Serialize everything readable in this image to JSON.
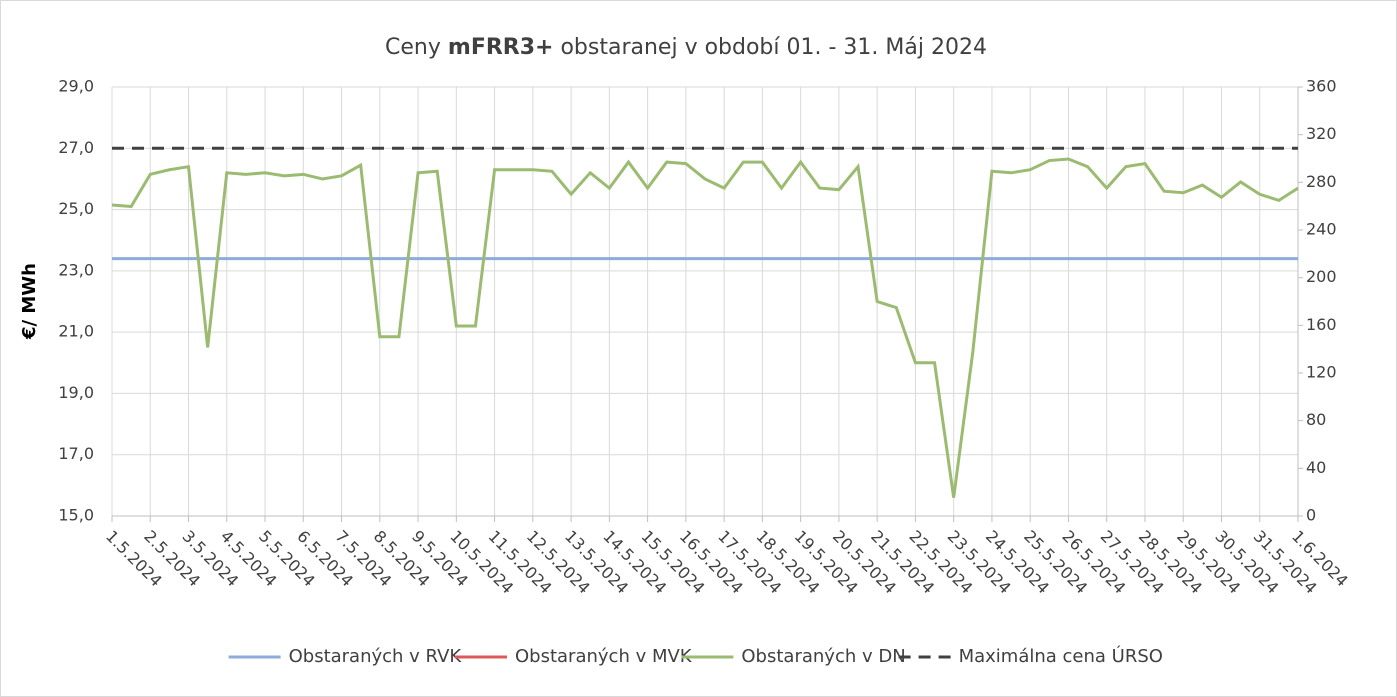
{
  "chart_data": {
    "type": "line",
    "title": [
      "Ceny ",
      "mFRR3+",
      " obstaranej v období 01. - 31. Máj 2024"
    ],
    "y_label": "€/ MWh",
    "x": [
      0,
      0.5,
      1,
      1.5,
      2,
      2.5,
      3,
      3.5,
      4,
      4.5,
      5,
      5.5,
      6,
      6.5,
      7,
      7.5,
      8,
      8.5,
      9,
      9.5,
      10,
      10.5,
      11,
      11.5,
      12,
      12.5,
      13,
      13.5,
      14,
      14.5,
      15,
      15.5,
      16,
      16.5,
      17,
      17.5,
      18,
      18.5,
      19,
      19.5,
      20,
      20.5,
      21,
      21.5,
      22,
      22.5,
      23,
      23.5,
      24,
      24.5,
      25,
      25.5,
      26,
      26.5,
      27,
      27.5,
      28,
      28.5,
      29,
      29.5,
      30,
      30.5,
      31
    ],
    "xlim": [
      0,
      31
    ],
    "xticks": [
      {
        "value": 0,
        "label": "1.5.2024"
      },
      {
        "value": 1,
        "label": "2.5.2024"
      },
      {
        "value": 2,
        "label": "3.5.2024"
      },
      {
        "value": 3,
        "label": "4.5.2024"
      },
      {
        "value": 4,
        "label": "5.5.2024"
      },
      {
        "value": 5,
        "label": "6.5.2024"
      },
      {
        "value": 6,
        "label": "7.5.2024"
      },
      {
        "value": 7,
        "label": "8.5.2024"
      },
      {
        "value": 8,
        "label": "9.5.2024"
      },
      {
        "value": 9,
        "label": "10.5.2024"
      },
      {
        "value": 10,
        "label": "11.5.2024"
      },
      {
        "value": 11,
        "label": "12.5.2024"
      },
      {
        "value": 12,
        "label": "13.5.2024"
      },
      {
        "value": 13,
        "label": "14.5.2024"
      },
      {
        "value": 14,
        "label": "15.5.2024"
      },
      {
        "value": 15,
        "label": "16.5.2024"
      },
      {
        "value": 16,
        "label": "17.5.2024"
      },
      {
        "value": 17,
        "label": "18.5.2024"
      },
      {
        "value": 18,
        "label": "19.5.2024"
      },
      {
        "value": 19,
        "label": "20.5.2024"
      },
      {
        "value": 20,
        "label": "21.5.2024"
      },
      {
        "value": 21,
        "label": "22.5.2024"
      },
      {
        "value": 22,
        "label": "23.5.2024"
      },
      {
        "value": 23,
        "label": "24.5.2024"
      },
      {
        "value": 24,
        "label": "25.5.2024"
      },
      {
        "value": 25,
        "label": "26.5.2024"
      },
      {
        "value": 26,
        "label": "27.5.2024"
      },
      {
        "value": 27,
        "label": "28.5.2024"
      },
      {
        "value": 28,
        "label": "29.5.2024"
      },
      {
        "value": 29,
        "label": "30.5.2024"
      },
      {
        "value": 30,
        "label": "31.5.2024"
      },
      {
        "value": 31,
        "label": "1.6.2024"
      }
    ],
    "ylim": [
      15,
      29
    ],
    "yticks": [
      {
        "value": 15,
        "label": "15,0"
      },
      {
        "value": 17,
        "label": "17,0"
      },
      {
        "value": 19,
        "label": "19,0"
      },
      {
        "value": 21,
        "label": "21,0"
      },
      {
        "value": 23,
        "label": "23,0"
      },
      {
        "value": 25,
        "label": "25,0"
      },
      {
        "value": 27,
        "label": "27,0"
      },
      {
        "value": 29,
        "label": "29,0"
      }
    ],
    "y2lim": [
      0,
      360
    ],
    "y2ticks": [
      0,
      40,
      80,
      120,
      160,
      200,
      240,
      280,
      320,
      360
    ],
    "grid": true,
    "legend": "bottom",
    "series": [
      {
        "name": "Obstaraných v RVK",
        "color": "#8faadc",
        "x": [
          0,
          31
        ],
        "values": [
          23.4,
          23.4
        ]
      },
      {
        "name": "Obstaraných v MVK",
        "color": "#e0575a",
        "axis": "y2",
        "x": [
          0,
          31
        ],
        "values": [
          null,
          null
        ]
      },
      {
        "name": "Obstaraných v DN",
        "color": "#9bbb71",
        "values": [
          25.15,
          25.1,
          26.15,
          26.3,
          26.4,
          20.5,
          26.2,
          26.15,
          26.2,
          26.1,
          26.15,
          26.0,
          26.1,
          26.45,
          20.85,
          20.85,
          26.2,
          26.25,
          21.2,
          21.2,
          26.3,
          26.3,
          26.3,
          26.25,
          25.5,
          26.2,
          25.7,
          26.55,
          25.7,
          26.55,
          26.5,
          26.0,
          25.7,
          26.55,
          26.55,
          25.7,
          26.55,
          25.7,
          25.65,
          26.4,
          22.0,
          21.8,
          20.0,
          20.0,
          15.6,
          20.35,
          26.25,
          26.2,
          26.3,
          26.6,
          26.65,
          26.4,
          25.7,
          26.4,
          26.5,
          25.6,
          25.55,
          25.8,
          25.4,
          25.9,
          25.5,
          25.3,
          25.7
        ]
      },
      {
        "name": "Maximálna cena ÚRSO",
        "color": "#404040",
        "dash": true,
        "x": [
          0,
          31
        ],
        "values": [
          27.0,
          27.0
        ]
      }
    ]
  }
}
